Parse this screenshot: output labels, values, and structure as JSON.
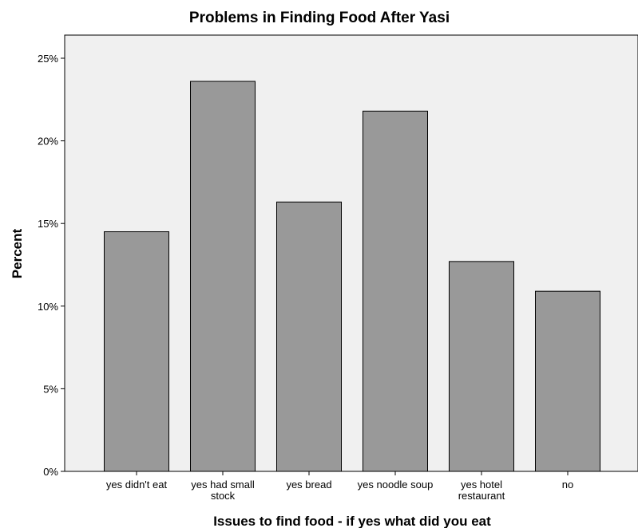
{
  "chart_data": {
    "type": "bar",
    "title": "Problems in Finding Food After Yasi",
    "xlabel": "Issues to find food - if yes what did you eat",
    "ylabel": "Percent",
    "categories": [
      [
        "yes didn't eat"
      ],
      [
        "yes had small",
        "stock"
      ],
      [
        "yes bread"
      ],
      [
        "yes noodle soup"
      ],
      [
        "yes hotel",
        "restaurant"
      ],
      [
        "no"
      ]
    ],
    "values": [
      14.5,
      23.6,
      16.3,
      21.8,
      12.7,
      10.9
    ],
    "ylim": [
      0,
      25
    ],
    "yticks": [
      0,
      5,
      10,
      15,
      20,
      25
    ],
    "ytick_labels": [
      "0%",
      "5%",
      "10%",
      "15%",
      "20%",
      "25%"
    ],
    "grid": false,
    "legend": "none",
    "colors": {
      "bar_fill": "#999999",
      "bar_stroke": "#000000",
      "plot_background": "#f0f0f0"
    }
  }
}
